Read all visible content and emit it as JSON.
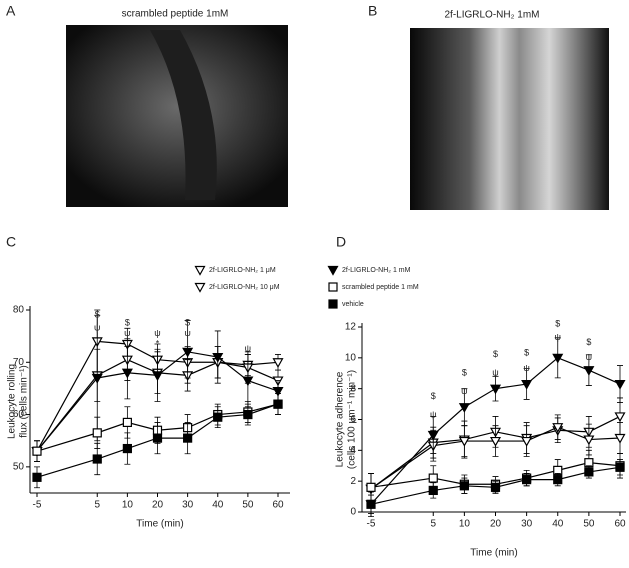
{
  "panels": [
    {
      "label": "A",
      "caption": "scrambled peptide 1mM"
    },
    {
      "label": "B",
      "caption": "2f-LIGRLO-NH₂ 1mM"
    }
  ],
  "chart_data": [
    {
      "type": "line",
      "label": "C",
      "ylabel": [
        "Leukocyte rolling",
        "flux (cells min⁻¹)"
      ],
      "xlabel": "Time (min)",
      "categories": [
        "-5",
        "5",
        "10",
        "20",
        "30",
        "40",
        "50",
        "60"
      ],
      "ylim": [
        45,
        80
      ],
      "yticks": [
        50,
        60,
        70,
        80
      ],
      "series": [
        {
          "name": "2f-LIGRLO-NH₂ 1 μM",
          "marker": "tri-open",
          "color": "#000",
          "values": [
            53,
            74,
            73.5,
            70.5,
            70,
            70,
            69.5,
            70
          ],
          "errors": [
            2,
            6,
            3,
            3,
            3,
            3,
            2,
            1.5
          ]
        },
        {
          "name": "2f-LIGRLO-NH₂ 10 μM",
          "marker": "tri-open",
          "color": "#000",
          "values": [
            53,
            67.5,
            70.5,
            68,
            67.5,
            70,
            69,
            66.5
          ],
          "errors": [
            2,
            5,
            4,
            4,
            3,
            3,
            3,
            2
          ]
        },
        {
          "name": "2f-LIGRLO-NH₂ 1 mM",
          "marker": "tri-filled",
          "color": "#000",
          "values": [
            53,
            67,
            68,
            67.5,
            72,
            71,
            66.5,
            64.5
          ],
          "errors": [
            2,
            12,
            5,
            5,
            6,
            5,
            5,
            2
          ]
        },
        {
          "name": "scrambled peptide 1 mM",
          "marker": "square-open",
          "color": "#000",
          "values": [
            53,
            56.5,
            58.5,
            57,
            57.5,
            60,
            60.5,
            62
          ],
          "errors": [
            2,
            3,
            3,
            2.5,
            2.5,
            2,
            2,
            2
          ]
        },
        {
          "name": "vehicle",
          "marker": "square-filled",
          "color": "#000",
          "values": [
            48,
            51.5,
            53.5,
            55.5,
            55.5,
            59.5,
            60,
            62
          ],
          "errors": [
            2,
            3,
            3,
            3,
            3,
            2,
            2,
            2
          ]
        }
      ],
      "annotations": [
        {
          "x": "5",
          "y": 79,
          "text": "$"
        },
        {
          "x": "5",
          "y": 76.5,
          "text": "ψ"
        },
        {
          "x": "10",
          "y": 77.5,
          "text": "$"
        },
        {
          "x": "10",
          "y": 75.5,
          "text": "ψ"
        },
        {
          "x": "20",
          "y": 75.5,
          "text": "ψ"
        },
        {
          "x": "20",
          "y": 73.5,
          "text": "*"
        },
        {
          "x": "30",
          "y": 77.5,
          "text": "$"
        },
        {
          "x": "30",
          "y": 75.5,
          "text": "ψ"
        },
        {
          "x": "50",
          "y": 72.5,
          "text": "ψ"
        }
      ]
    },
    {
      "type": "line",
      "label": "D",
      "ylabel": [
        "Leukocyte adherence",
        "(cells 100 µm⁻¹ min⁻¹)"
      ],
      "xlabel": "Time (min)",
      "categories": [
        "-5",
        "5",
        "10",
        "20",
        "30",
        "40",
        "50",
        "60"
      ],
      "ylim": [
        0,
        12
      ],
      "yticks": [
        0,
        2,
        4,
        6,
        8,
        10,
        12
      ],
      "series": [
        {
          "marker": "tri-open",
          "color": "#000",
          "values": [
            1.5,
            4.5,
            4.7,
            5.2,
            4.8,
            5.3,
            5.2,
            6.2
          ],
          "errors": [
            1,
            1,
            1.2,
            1,
            1,
            0.8,
            1,
            1.2
          ]
        },
        {
          "marker": "tri-open",
          "color": "#000",
          "values": [
            1.5,
            4.3,
            4.6,
            4.6,
            4.6,
            5.5,
            4.7,
            4.8
          ],
          "errors": [
            1,
            1,
            1,
            1,
            1,
            0.8,
            1,
            1
          ]
        },
        {
          "marker": "tri-filled",
          "color": "#000",
          "values": [
            0.5,
            5,
            6.8,
            8,
            8.3,
            10,
            9.2,
            8.3
          ],
          "errors": [
            0.8,
            1.2,
            1.2,
            0.8,
            1,
            1.3,
            1,
            1.2
          ]
        },
        {
          "marker": "square-open",
          "color": "#000",
          "values": [
            1.6,
            2.2,
            1.8,
            1.8,
            2.2,
            2.7,
            3.2,
            3
          ],
          "errors": [
            0.9,
            0.8,
            0.6,
            0.5,
            0.5,
            0.7,
            0.8,
            0.8
          ]
        },
        {
          "marker": "square-filled",
          "color": "#000",
          "values": [
            0.5,
            1.4,
            1.7,
            1.6,
            2.1,
            2.1,
            2.6,
            2.9
          ],
          "errors": [
            0.6,
            0.5,
            0.5,
            0.4,
            0.4,
            0.4,
            0.4,
            0.5
          ]
        }
      ],
      "annotations": [
        {
          "x": "5",
          "y": 7.5,
          "text": "$"
        },
        {
          "x": "5",
          "y": 6.3,
          "text": "ψ"
        },
        {
          "x": "10",
          "y": 9,
          "text": "$"
        },
        {
          "x": "10",
          "y": 7.8,
          "text": "ψ"
        },
        {
          "x": "20",
          "y": 10.2,
          "text": "$"
        },
        {
          "x": "20",
          "y": 9,
          "text": "ψ"
        },
        {
          "x": "30",
          "y": 10.3,
          "text": "$"
        },
        {
          "x": "30",
          "y": 9.3,
          "text": "ψ"
        },
        {
          "x": "40",
          "y": 12.2,
          "text": "$"
        },
        {
          "x": "40",
          "y": 11.3,
          "text": "ψ"
        },
        {
          "x": "50",
          "y": 11,
          "text": "$"
        },
        {
          "x": "50",
          "y": 10,
          "text": "ψ"
        }
      ]
    }
  ]
}
